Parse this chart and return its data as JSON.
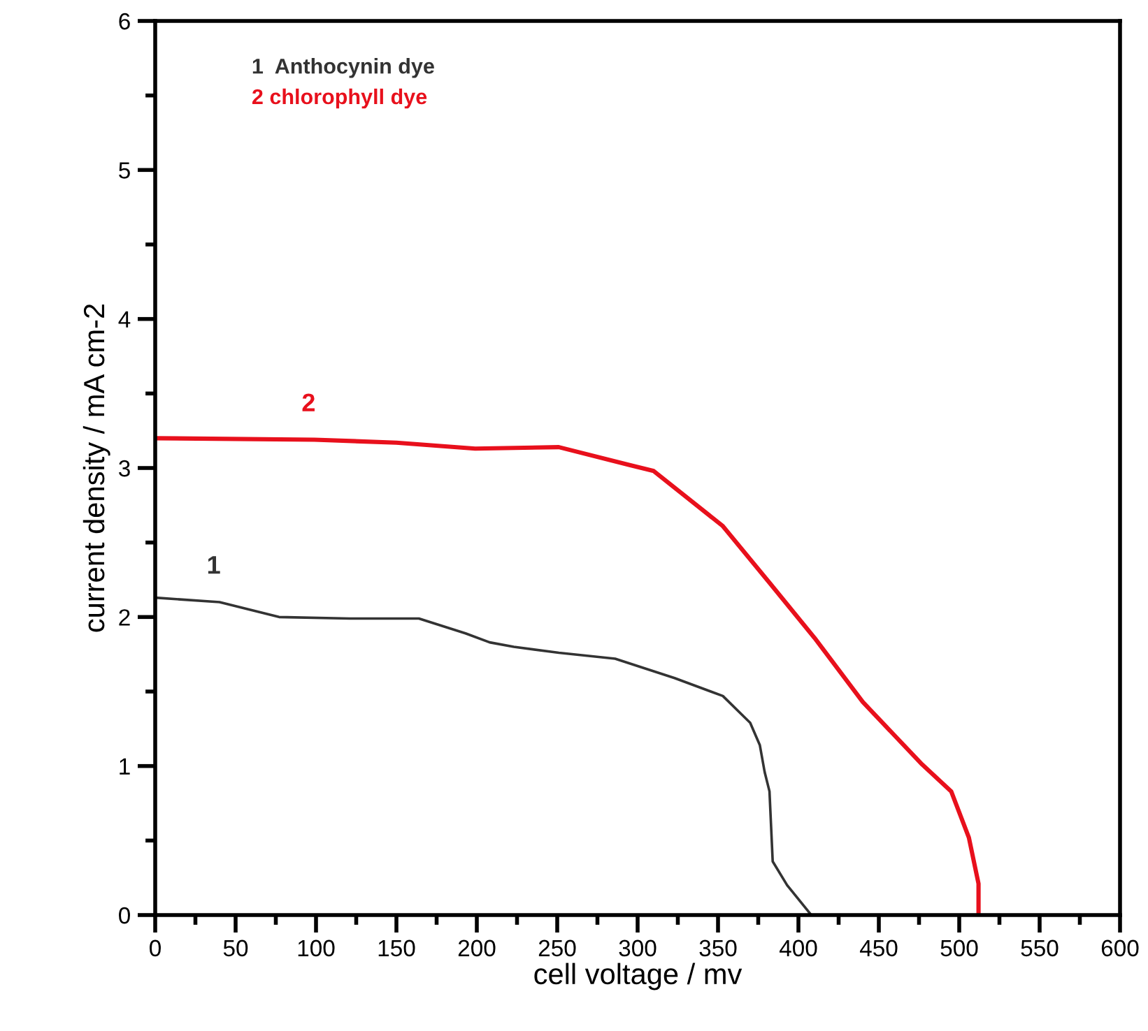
{
  "chart_data": {
    "type": "line",
    "xlabel": "cell voltage / mv",
    "ylabel": "current density / mA cm-2",
    "xlim": [
      0,
      600
    ],
    "xticks": [
      0,
      50,
      100,
      150,
      200,
      250,
      300,
      350,
      400,
      450,
      500,
      550,
      600
    ],
    "ylim": [
      0,
      6
    ],
    "yticks": [
      0,
      1,
      2,
      3,
      4,
      5,
      6
    ],
    "grid": false,
    "legend": "top left",
    "marker": "none",
    "line_style": "solid",
    "series": [
      {
        "name": "1  Anthocynin dye",
        "color": "#333333",
        "x": [
          0,
          40,
          77,
          121,
          164,
          193,
          208,
          223,
          251,
          286,
          323,
          353,
          370,
          376,
          379,
          382,
          384,
          393,
          408
        ],
        "values": [
          2.13,
          2.1,
          2.0,
          1.99,
          1.99,
          1.89,
          1.83,
          1.8,
          1.76,
          1.72,
          1.59,
          1.47,
          1.29,
          1.14,
          0.96,
          0.83,
          0.36,
          0.2,
          0
        ]
      },
      {
        "name": "2 chlorophyll dye",
        "color": "#e8101c",
        "x": [
          0,
          99,
          150,
          199,
          251,
          295,
          310,
          353,
          382,
          410,
          440,
          477,
          495,
          506,
          512,
          512
        ],
        "values": [
          3.2,
          3.19,
          3.17,
          3.13,
          3.14,
          3.02,
          2.98,
          2.61,
          2.23,
          1.86,
          1.43,
          1.01,
          0.83,
          0.52,
          0.21,
          0
        ]
      }
    ],
    "annotations": [
      "1",
      "2"
    ]
  }
}
